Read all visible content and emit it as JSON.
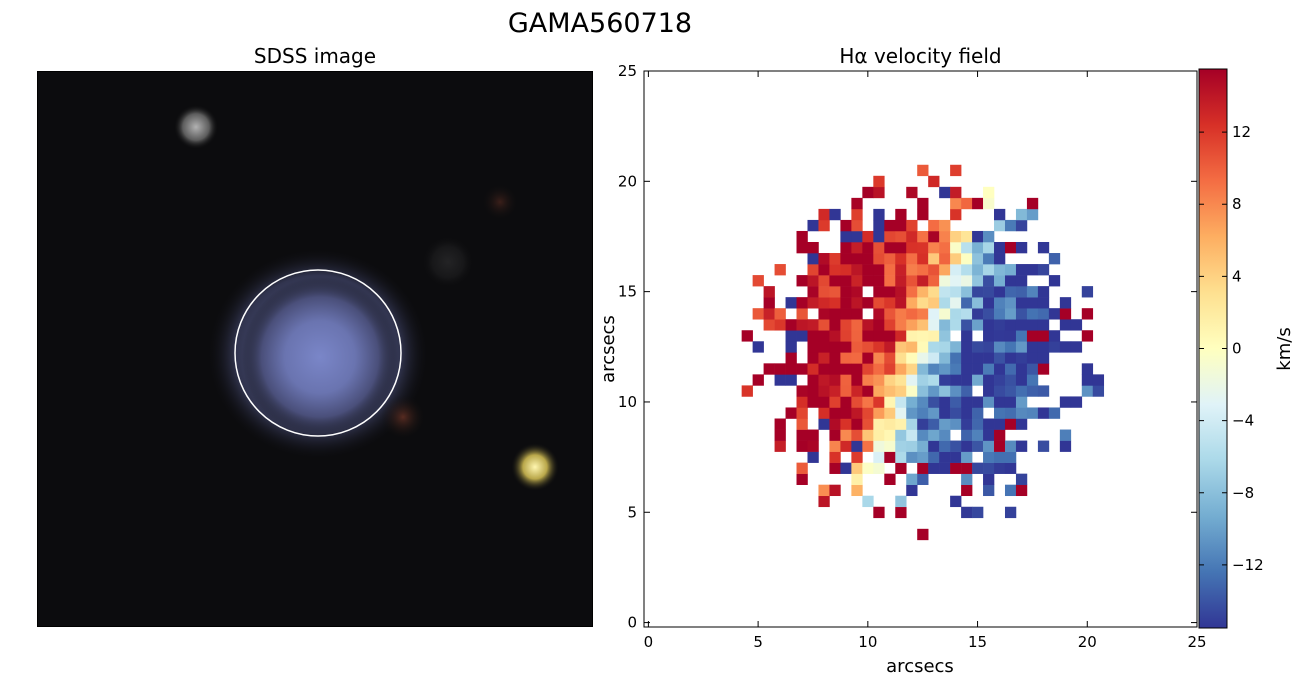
{
  "figure": {
    "title": "GAMA560718"
  },
  "left_panel": {
    "title": "SDSS image"
  },
  "chart_data": {
    "type": "heatmap",
    "title": "Hα velocity field",
    "xlabel": "arcsecs",
    "ylabel": "arcsecs",
    "xlim": [
      -0.2,
      25
    ],
    "ylim": [
      -0.2,
      25
    ],
    "x_ticks": [
      "0",
      "5",
      "10",
      "15",
      "20",
      "25"
    ],
    "y_ticks": [
      "0",
      "5",
      "10",
      "15",
      "20",
      "25"
    ],
    "colorbar": {
      "label": "km/s",
      "range": [
        -15.5,
        15.5
      ],
      "ticks": [
        "−12",
        "−8",
        "−4",
        "0",
        "4",
        "8",
        "12"
      ],
      "tick_values": [
        -12,
        -8,
        -4,
        0,
        4,
        8,
        12
      ],
      "colormap": [
        "#313695",
        "#4575b4",
        "#74add1",
        "#abd9e9",
        "#e0f3f8",
        "#ffffbf",
        "#fee090",
        "#fdae61",
        "#f46d43",
        "#d73027",
        "#a50026"
      ]
    },
    "pixel_size_arcsec": 0.5,
    "grid_center_arcsec": [
      12.25,
      12.25
    ],
    "disk_radius_arcsec": 7.5,
    "kinematic_axis": "rotation with redshifted (positive) side to the left (east) and blueshifted side to the right",
    "velocity_amplitude_kms": 15
  }
}
